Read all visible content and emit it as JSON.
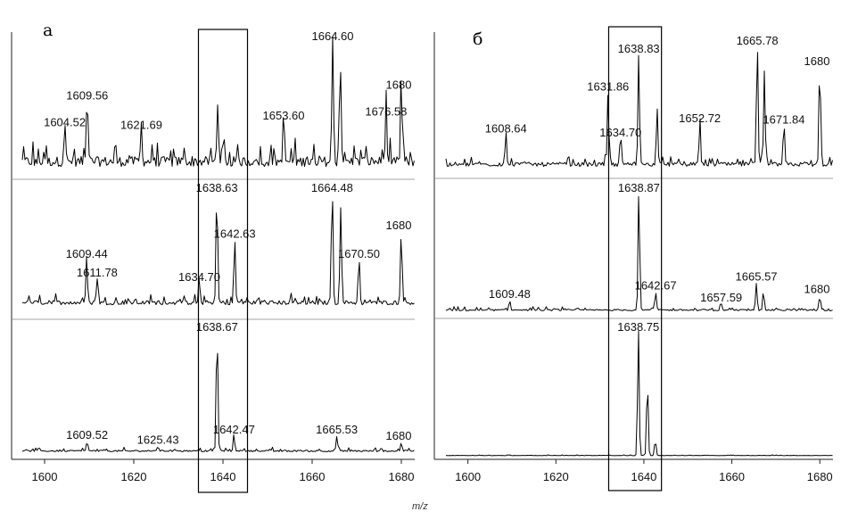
{
  "figure": {
    "x_axis_title": "m/z",
    "colors": {
      "trace": "#000000",
      "separator": "#888888",
      "frame": "#000000"
    }
  },
  "chart_data": [
    {
      "panel": "а",
      "type": "line",
      "xlim": [
        1595,
        1683
      ],
      "ticks": [
        1600,
        1620,
        1640,
        1660,
        1680
      ],
      "tick_labels": [
        "1600",
        "1620",
        "1640",
        "1660",
        "1680"
      ],
      "highlight_range": [
        1634.5,
        1645.5
      ],
      "series": [
        {
          "peaks": [
            {
              "x": 1604.52,
              "h": 0.3,
              "label": "1604.52"
            },
            {
              "x": 1609.56,
              "h": 0.5,
              "label": "1609.56"
            },
            {
              "x": 1621.69,
              "h": 0.28,
              "label": "1621.69"
            },
            {
              "x": 1638.8,
              "h": 0.46,
              "label": ""
            },
            {
              "x": 1653.6,
              "h": 0.35,
              "label": "1653.60"
            },
            {
              "x": 1664.6,
              "h": 1.0,
              "label": "1664.60"
            },
            {
              "x": 1666.3,
              "h": 0.75,
              "label": ""
            },
            {
              "x": 1676.58,
              "h": 0.38,
              "label": "1676.58"
            },
            {
              "x": 1680,
              "h": 0.58,
              "label": "1680"
            }
          ]
        },
        {
          "peaks": [
            {
              "x": 1609.44,
              "h": 0.38,
              "label": "1609.44"
            },
            {
              "x": 1611.78,
              "h": 0.22,
              "label": "1611.78"
            },
            {
              "x": 1634.7,
              "h": 0.18,
              "label": "1634.70"
            },
            {
              "x": 1638.63,
              "h": 0.98,
              "label": "1638.63"
            },
            {
              "x": 1642.63,
              "h": 0.55,
              "label": "1642.63"
            },
            {
              "x": 1664.48,
              "h": 1.0,
              "label": "1664.48"
            },
            {
              "x": 1666.4,
              "h": 0.8,
              "label": ""
            },
            {
              "x": 1670.5,
              "h": 0.38,
              "label": "1670.50"
            },
            {
              "x": 1680,
              "h": 0.62,
              "label": "1680"
            }
          ]
        },
        {
          "peaks": [
            {
              "x": 1609.52,
              "h": 0.08,
              "label": "1609.52"
            },
            {
              "x": 1625.43,
              "h": 0.04,
              "label": "1625.43"
            },
            {
              "x": 1638.67,
              "h": 1.0,
              "label": "1638.67"
            },
            {
              "x": 1642.47,
              "h": 0.12,
              "label": "1642.47"
            },
            {
              "x": 1665.53,
              "h": 0.12,
              "label": "1665.53"
            },
            {
              "x": 1680,
              "h": 0.07,
              "label": "1680"
            }
          ]
        }
      ]
    },
    {
      "panel": "б",
      "type": "line",
      "xlim": [
        1595,
        1683
      ],
      "ticks": [
        1600,
        1620,
        1640,
        1660,
        1680
      ],
      "tick_labels": [
        "1600",
        "1620",
        "1640",
        "1660",
        "1680"
      ],
      "highlight_range": [
        1632,
        1644
      ],
      "series": [
        {
          "peaks": [
            {
              "x": 1608.64,
              "h": 0.25,
              "label": "1608.64"
            },
            {
              "x": 1631.86,
              "h": 0.58,
              "label": "1631.86"
            },
            {
              "x": 1634.7,
              "h": 0.22,
              "label": "1634.70"
            },
            {
              "x": 1638.83,
              "h": 0.88,
              "label": "1638.83"
            },
            {
              "x": 1643,
              "h": 0.45,
              "label": ""
            },
            {
              "x": 1652.72,
              "h": 0.33,
              "label": "1652.72"
            },
            {
              "x": 1665.78,
              "h": 1.0,
              "label": "1665.78"
            },
            {
              "x": 1667.4,
              "h": 0.7,
              "label": ""
            },
            {
              "x": 1671.84,
              "h": 0.32,
              "label": "1671.84"
            },
            {
              "x": 1680,
              "h": 0.78,
              "label": "1680"
            }
          ]
        },
        {
          "peaks": [
            {
              "x": 1609.48,
              "h": 0.08,
              "label": "1609.48"
            },
            {
              "x": 1638.87,
              "h": 1.0,
              "label": "1638.87"
            },
            {
              "x": 1642.67,
              "h": 0.15,
              "label": "1642.67"
            },
            {
              "x": 1657.59,
              "h": 0.05,
              "label": "1657.59"
            },
            {
              "x": 1665.57,
              "h": 0.22,
              "label": "1665.57"
            },
            {
              "x": 1667.2,
              "h": 0.15,
              "label": ""
            },
            {
              "x": 1680,
              "h": 0.12,
              "label": "1680"
            }
          ]
        },
        {
          "peaks": [
            {
              "x": 1638.75,
              "h": 1.0,
              "label": "1638.75"
            },
            {
              "x": 1640.8,
              "h": 0.6,
              "label": ""
            },
            {
              "x": 1642.6,
              "h": 0.12,
              "label": ""
            }
          ]
        }
      ]
    }
  ]
}
